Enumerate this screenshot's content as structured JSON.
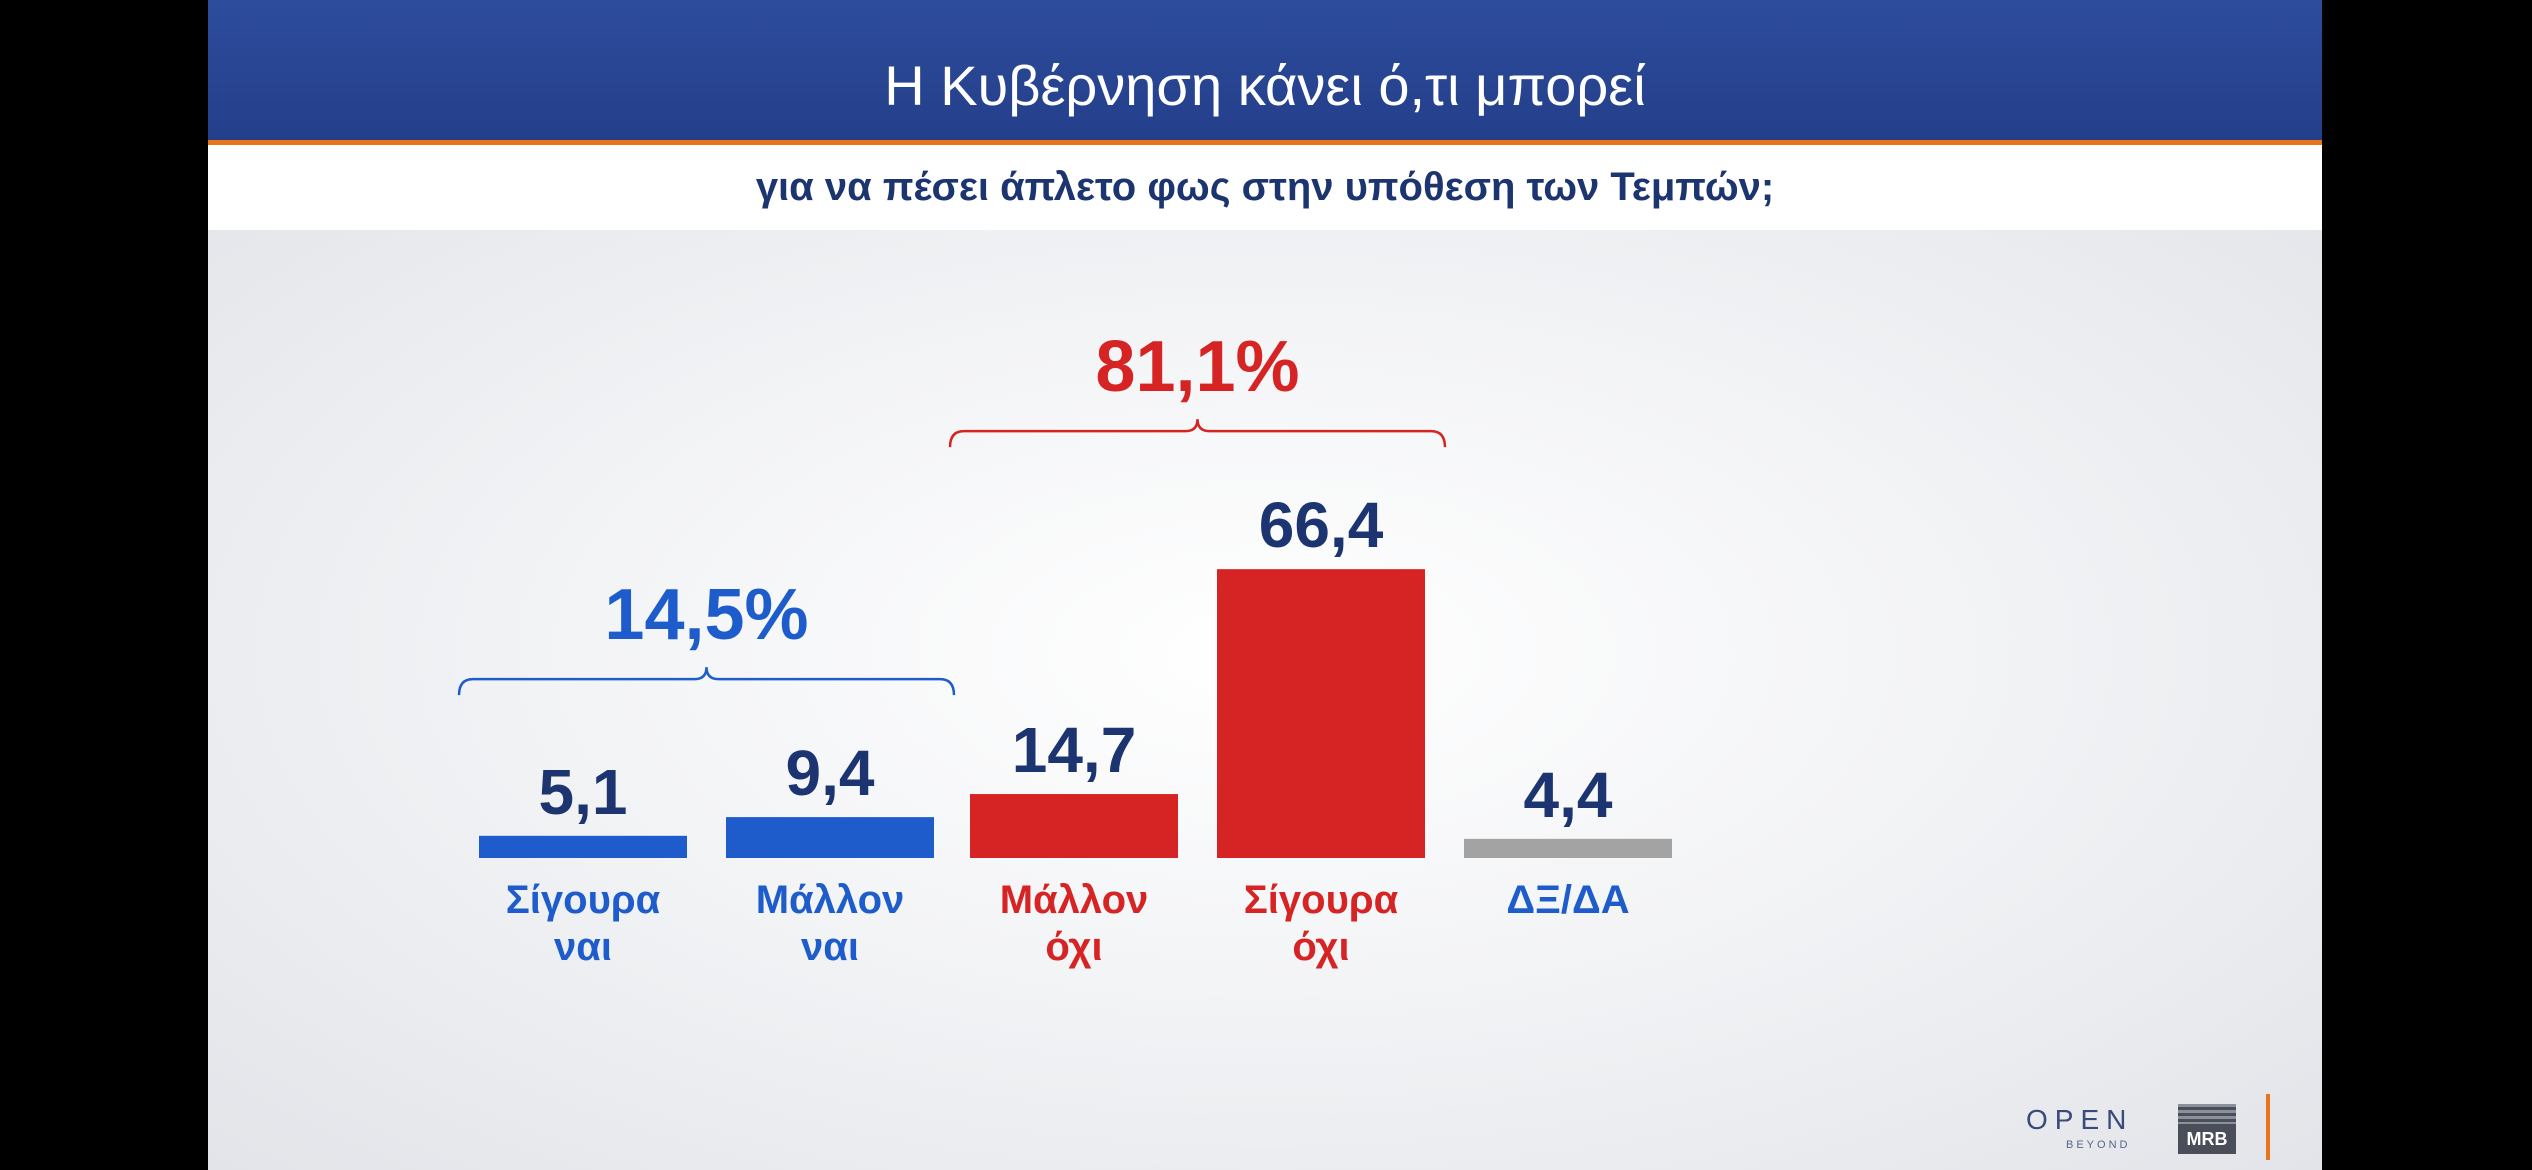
{
  "header": {
    "title": "Η Κυβέρνηση κάνει ό,τι μπορεί",
    "subtitle": "για να πέσει άπλετο φως στην υπόθεση των Τεμπών;"
  },
  "colors": {
    "header_bg": "#2a4896",
    "accent_orange": "#e8741c",
    "yes_blue": "#1e5ccb",
    "no_red": "#d62323",
    "dk_gray": "#a3a3a3",
    "value_navy": "#1c3570"
  },
  "chart_data": {
    "type": "bar",
    "categories": [
      "Σίγουρα ναι",
      "Μάλλον ναι",
      "Μάλλον όχι",
      "Σίγουρα όχι",
      "ΔΞ/ΔΑ"
    ],
    "category_lines": [
      [
        "Σίγουρα",
        "ναι"
      ],
      [
        "Μάλλον",
        "ναι"
      ],
      [
        "Μάλλον",
        "όχι"
      ],
      [
        "Σίγουρα",
        "όχι"
      ],
      [
        "ΔΞ/ΔΑ"
      ]
    ],
    "values": [
      5.1,
      9.4,
      14.7,
      66.4,
      4.4
    ],
    "value_labels": [
      "5,1",
      "9,4",
      "14,7",
      "66,4",
      "4,4"
    ],
    "bar_colors": [
      "#1e5ccb",
      "#1e5ccb",
      "#d62323",
      "#d62323",
      "#a3a3a3"
    ],
    "groups": [
      {
        "label": "14,5%",
        "value": 14.5,
        "from": 0,
        "to": 1,
        "color": "#1e5ccb"
      },
      {
        "label": "81,1%",
        "value": 81.1,
        "from": 2,
        "to": 3,
        "color": "#d62323"
      }
    ]
  },
  "logos": {
    "broadcaster": "OPEN",
    "broadcaster_tagline": "BEYOND",
    "pollster": "MRB"
  }
}
